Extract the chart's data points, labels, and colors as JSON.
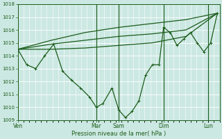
{
  "xlabel": "Pression niveau de la mer( hPa )",
  "bg_color": "#cce8e2",
  "grid_color": "#ffffff",
  "line_color": "#1a5c1a",
  "ylim": [
    1009,
    1018
  ],
  "yticks": [
    1009,
    1010,
    1011,
    1012,
    1013,
    1014,
    1015,
    1016,
    1017,
    1018
  ],
  "xtick_labels": [
    "Ven",
    "Mar",
    "Sam",
    "Dim",
    "Lun"
  ],
  "xtick_positions": [
    0,
    3.5,
    4.5,
    6.5,
    8.5
  ],
  "xlim": [
    0,
    9.0
  ],
  "vlines_x": [
    3.5,
    4.5,
    6.5,
    8.5
  ],
  "detailed_line": {
    "x": [
      0,
      0.4,
      0.8,
      1.2,
      1.6,
      2.0,
      2.4,
      2.8,
      3.2,
      3.5,
      3.8,
      4.2,
      4.5,
      4.8,
      5.1,
      5.4,
      5.7,
      6.0,
      6.3,
      6.5,
      6.8,
      7.1,
      7.4,
      7.7,
      8.0,
      8.3,
      8.6,
      8.9
    ],
    "y": [
      1014.5,
      1013.3,
      1013.0,
      1014.0,
      1014.9,
      1012.8,
      1012.1,
      1011.5,
      1010.8,
      1010.0,
      1010.3,
      1011.5,
      1009.8,
      1009.2,
      1009.7,
      1010.5,
      1012.5,
      1013.3,
      1013.3,
      1016.2,
      1015.8,
      1014.8,
      1015.3,
      1015.8,
      1015.0,
      1014.3,
      1015.0,
      1017.3
    ]
  },
  "smooth_lines": [
    {
      "x": [
        0,
        1.5,
        3.0,
        4.5,
        6.0,
        7.5,
        8.9
      ],
      "y": [
        1014.5,
        1015.2,
        1015.8,
        1016.2,
        1016.5,
        1016.8,
        1017.3
      ]
    },
    {
      "x": [
        0,
        1.5,
        3.0,
        4.5,
        6.0,
        7.5,
        8.9
      ],
      "y": [
        1014.5,
        1014.9,
        1015.2,
        1015.5,
        1015.7,
        1016.0,
        1017.3
      ]
    },
    {
      "x": [
        0,
        1.5,
        3.0,
        4.5,
        6.0,
        7.5,
        8.9
      ],
      "y": [
        1014.5,
        1014.5,
        1014.6,
        1014.8,
        1015.0,
        1015.5,
        1017.3
      ]
    }
  ],
  "figsize": [
    3.2,
    2.0
  ],
  "dpi": 100
}
